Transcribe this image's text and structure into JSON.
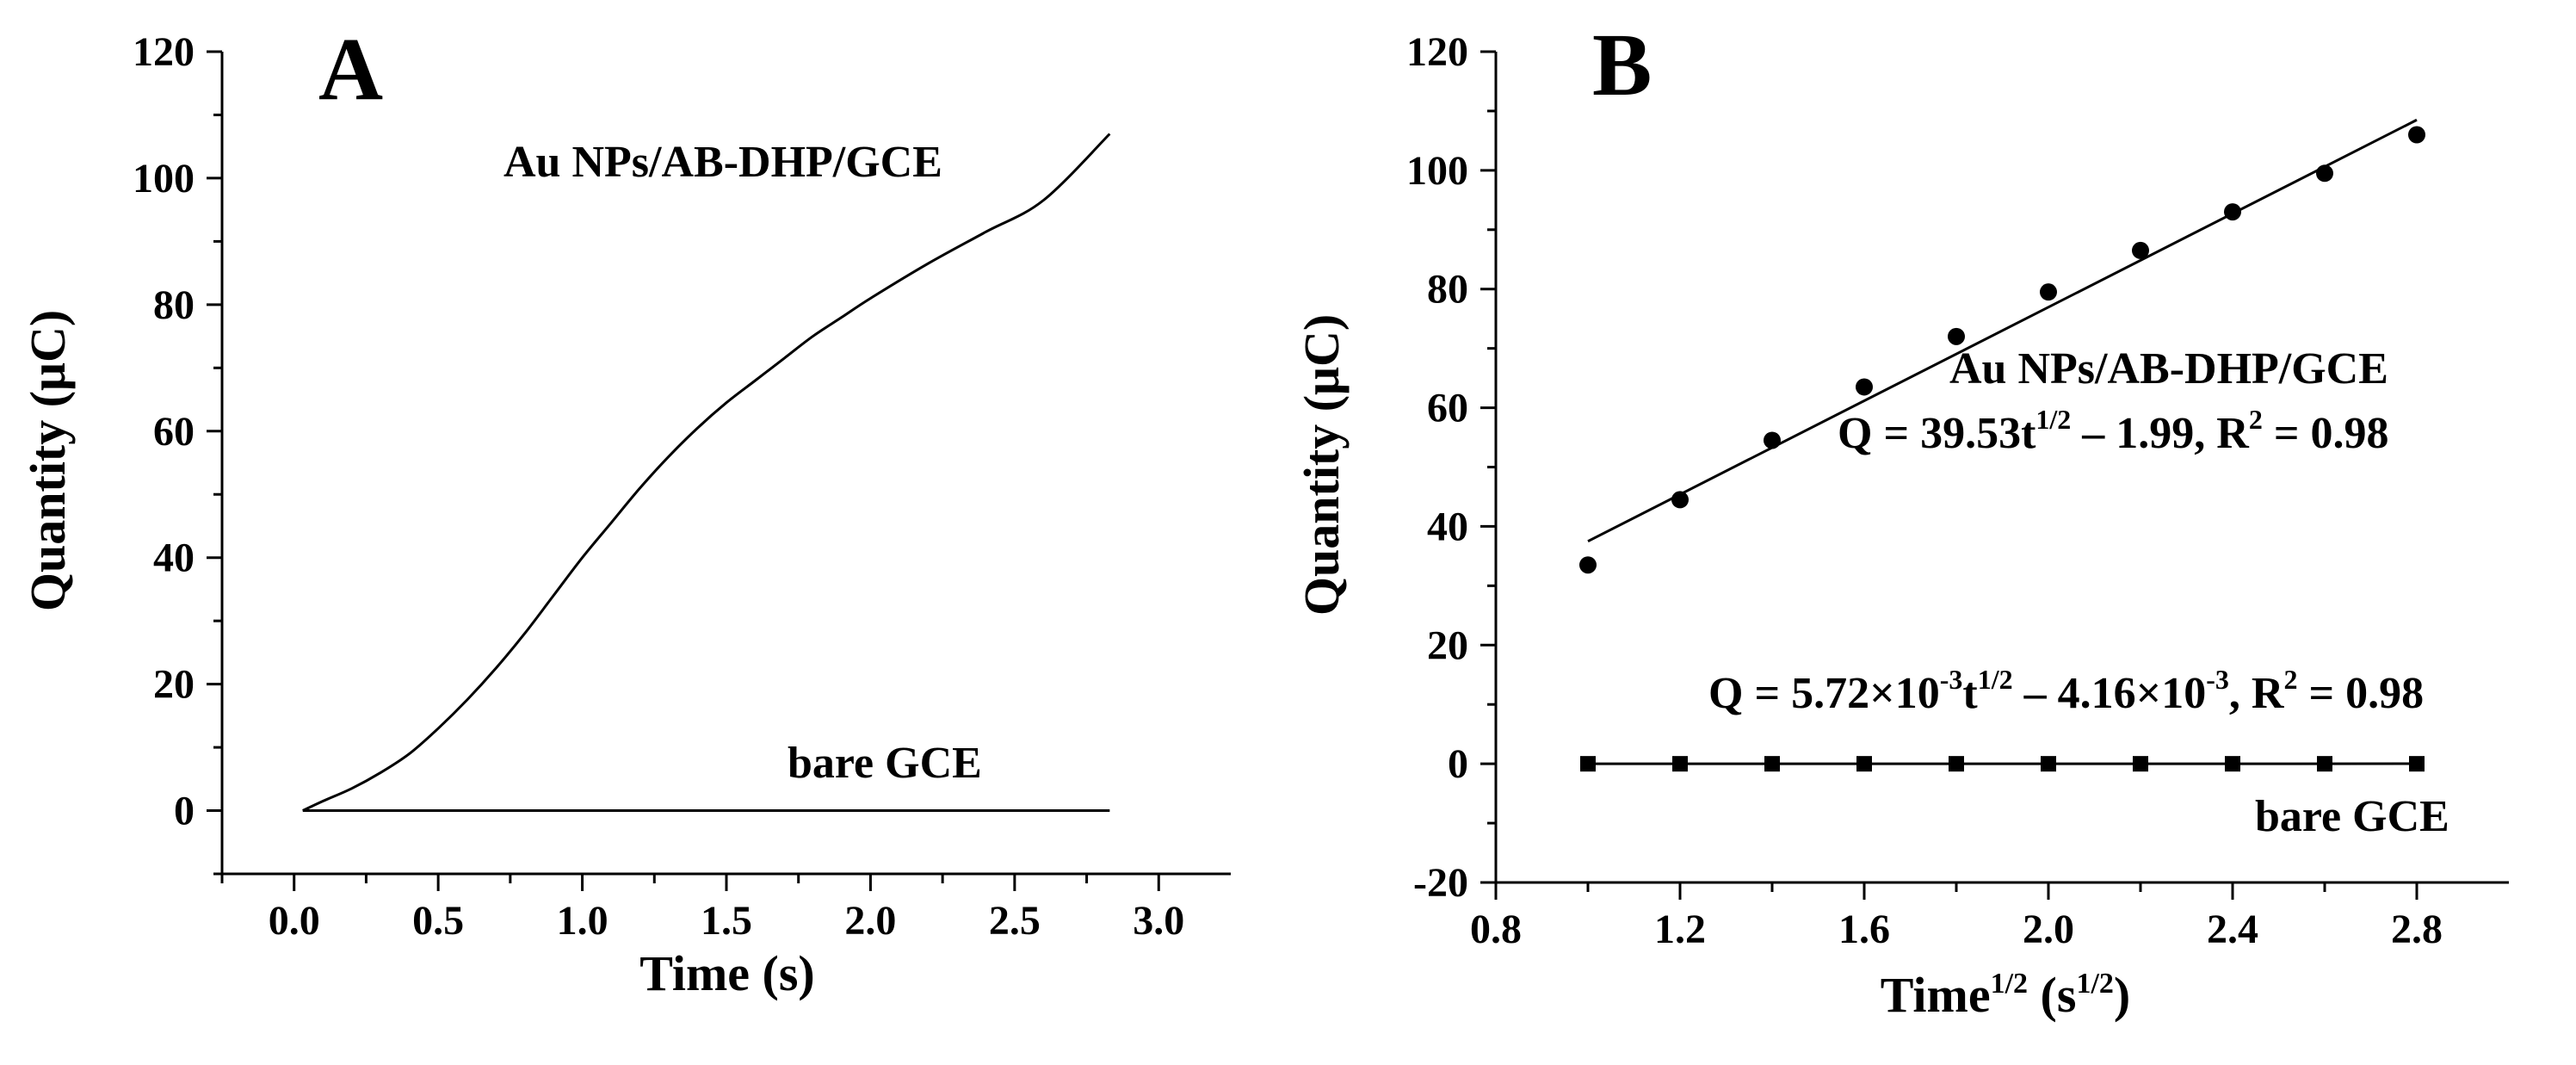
{
  "chart_data": [
    {
      "panel": "A",
      "type": "line",
      "xlabel": "Time (s)",
      "ylabel": "Quantity (μC)",
      "xlim": [
        -0.25,
        3.25
      ],
      "ylim": [
        -10,
        120
      ],
      "xticks": [
        "0.0",
        "0.5",
        "1.0",
        "1.5",
        "2.0",
        "2.5",
        "3.0"
      ],
      "yticks": [
        "0",
        "20",
        "40",
        "60",
        "80",
        "100",
        "120"
      ],
      "grid": false,
      "series": [
        {
          "name": "Au NPs/AB-DHP/GCE",
          "x": [
            0.03,
            0.1,
            0.2,
            0.3,
            0.4,
            0.5,
            0.6,
            0.7,
            0.8,
            0.9,
            1.0,
            1.1,
            1.2,
            1.3,
            1.4,
            1.5,
            1.6,
            1.7,
            1.8,
            1.9,
            2.0,
            2.2,
            2.4,
            2.6,
            2.83
          ],
          "y": [
            0,
            1.5,
            3.5,
            6,
            9,
            13,
            17.5,
            22.5,
            28,
            34,
            40,
            45.5,
            51,
            56,
            60.5,
            64.5,
            68,
            71.5,
            75,
            78,
            81,
            86.5,
            91.5,
            96.5,
            107
          ]
        },
        {
          "name": "bare GCE",
          "x": [
            0.03,
            2.83
          ],
          "y": [
            0,
            0
          ]
        }
      ],
      "annotations": [
        "Au NPs/AB-DHP/GCE",
        "bare GCE"
      ]
    },
    {
      "panel": "B",
      "type": "scatter",
      "xlabel_main": "Time",
      "xlabel_sup": "1/2",
      "xlabel_unit": "(s",
      "xlabel_unit_sup": "1/2",
      "xlabel_close": ")",
      "ylabel": "Quantity (μC)",
      "xlim": [
        0.8,
        3.0
      ],
      "ylim": [
        -20,
        120
      ],
      "xticks": [
        "0.8",
        "1.2",
        "1.6",
        "2.0",
        "2.4",
        "2.8"
      ],
      "yticks": [
        "-20",
        "0",
        "20",
        "40",
        "60",
        "80",
        "100",
        "120"
      ],
      "grid": false,
      "series": [
        {
          "name": "Au NPs/AB-DHP/GCE",
          "marker": "circle",
          "x": [
            1.0,
            1.2,
            1.4,
            1.6,
            1.8,
            2.0,
            2.2,
            2.4,
            2.6,
            2.8
          ],
          "y": [
            33.5,
            44.5,
            54.5,
            63.5,
            72,
            79.5,
            86.5,
            93,
            99.5,
            106
          ],
          "fit": {
            "slope": 39.53,
            "intercept": -1.99,
            "x_range": [
              1.0,
              2.8
            ]
          }
        },
        {
          "name": "bare GCE",
          "marker": "square",
          "x": [
            1.0,
            1.2,
            1.4,
            1.6,
            1.8,
            2.0,
            2.2,
            2.4,
            2.6,
            2.8
          ],
          "y": [
            0,
            0,
            0,
            0,
            0,
            0,
            0,
            0,
            0,
            0
          ],
          "fit": {
            "slope": 0.00572,
            "intercept": -0.00416,
            "x_range": [
              1.0,
              2.8
            ]
          }
        }
      ],
      "annotations": {
        "series1_name": "Au NPs/AB-DHP/GCE",
        "eq1_a": "Q = 39.53t",
        "eq1_sup": "1/2",
        "eq1_b": " – 1.99, R",
        "eq1_sup2": "2",
        "eq1_c": " = 0.98",
        "eq2_a": "Q = 5.72×10",
        "eq2_sup1": "-3",
        "eq2_b": "t",
        "eq2_sup2": "1/2",
        "eq2_c": " – 4.16×10",
        "eq2_sup3": "-3",
        "eq2_d": ", R",
        "eq2_sup4": "2",
        "eq2_e": " = 0.98",
        "series2_name": "bare GCE"
      }
    }
  ]
}
